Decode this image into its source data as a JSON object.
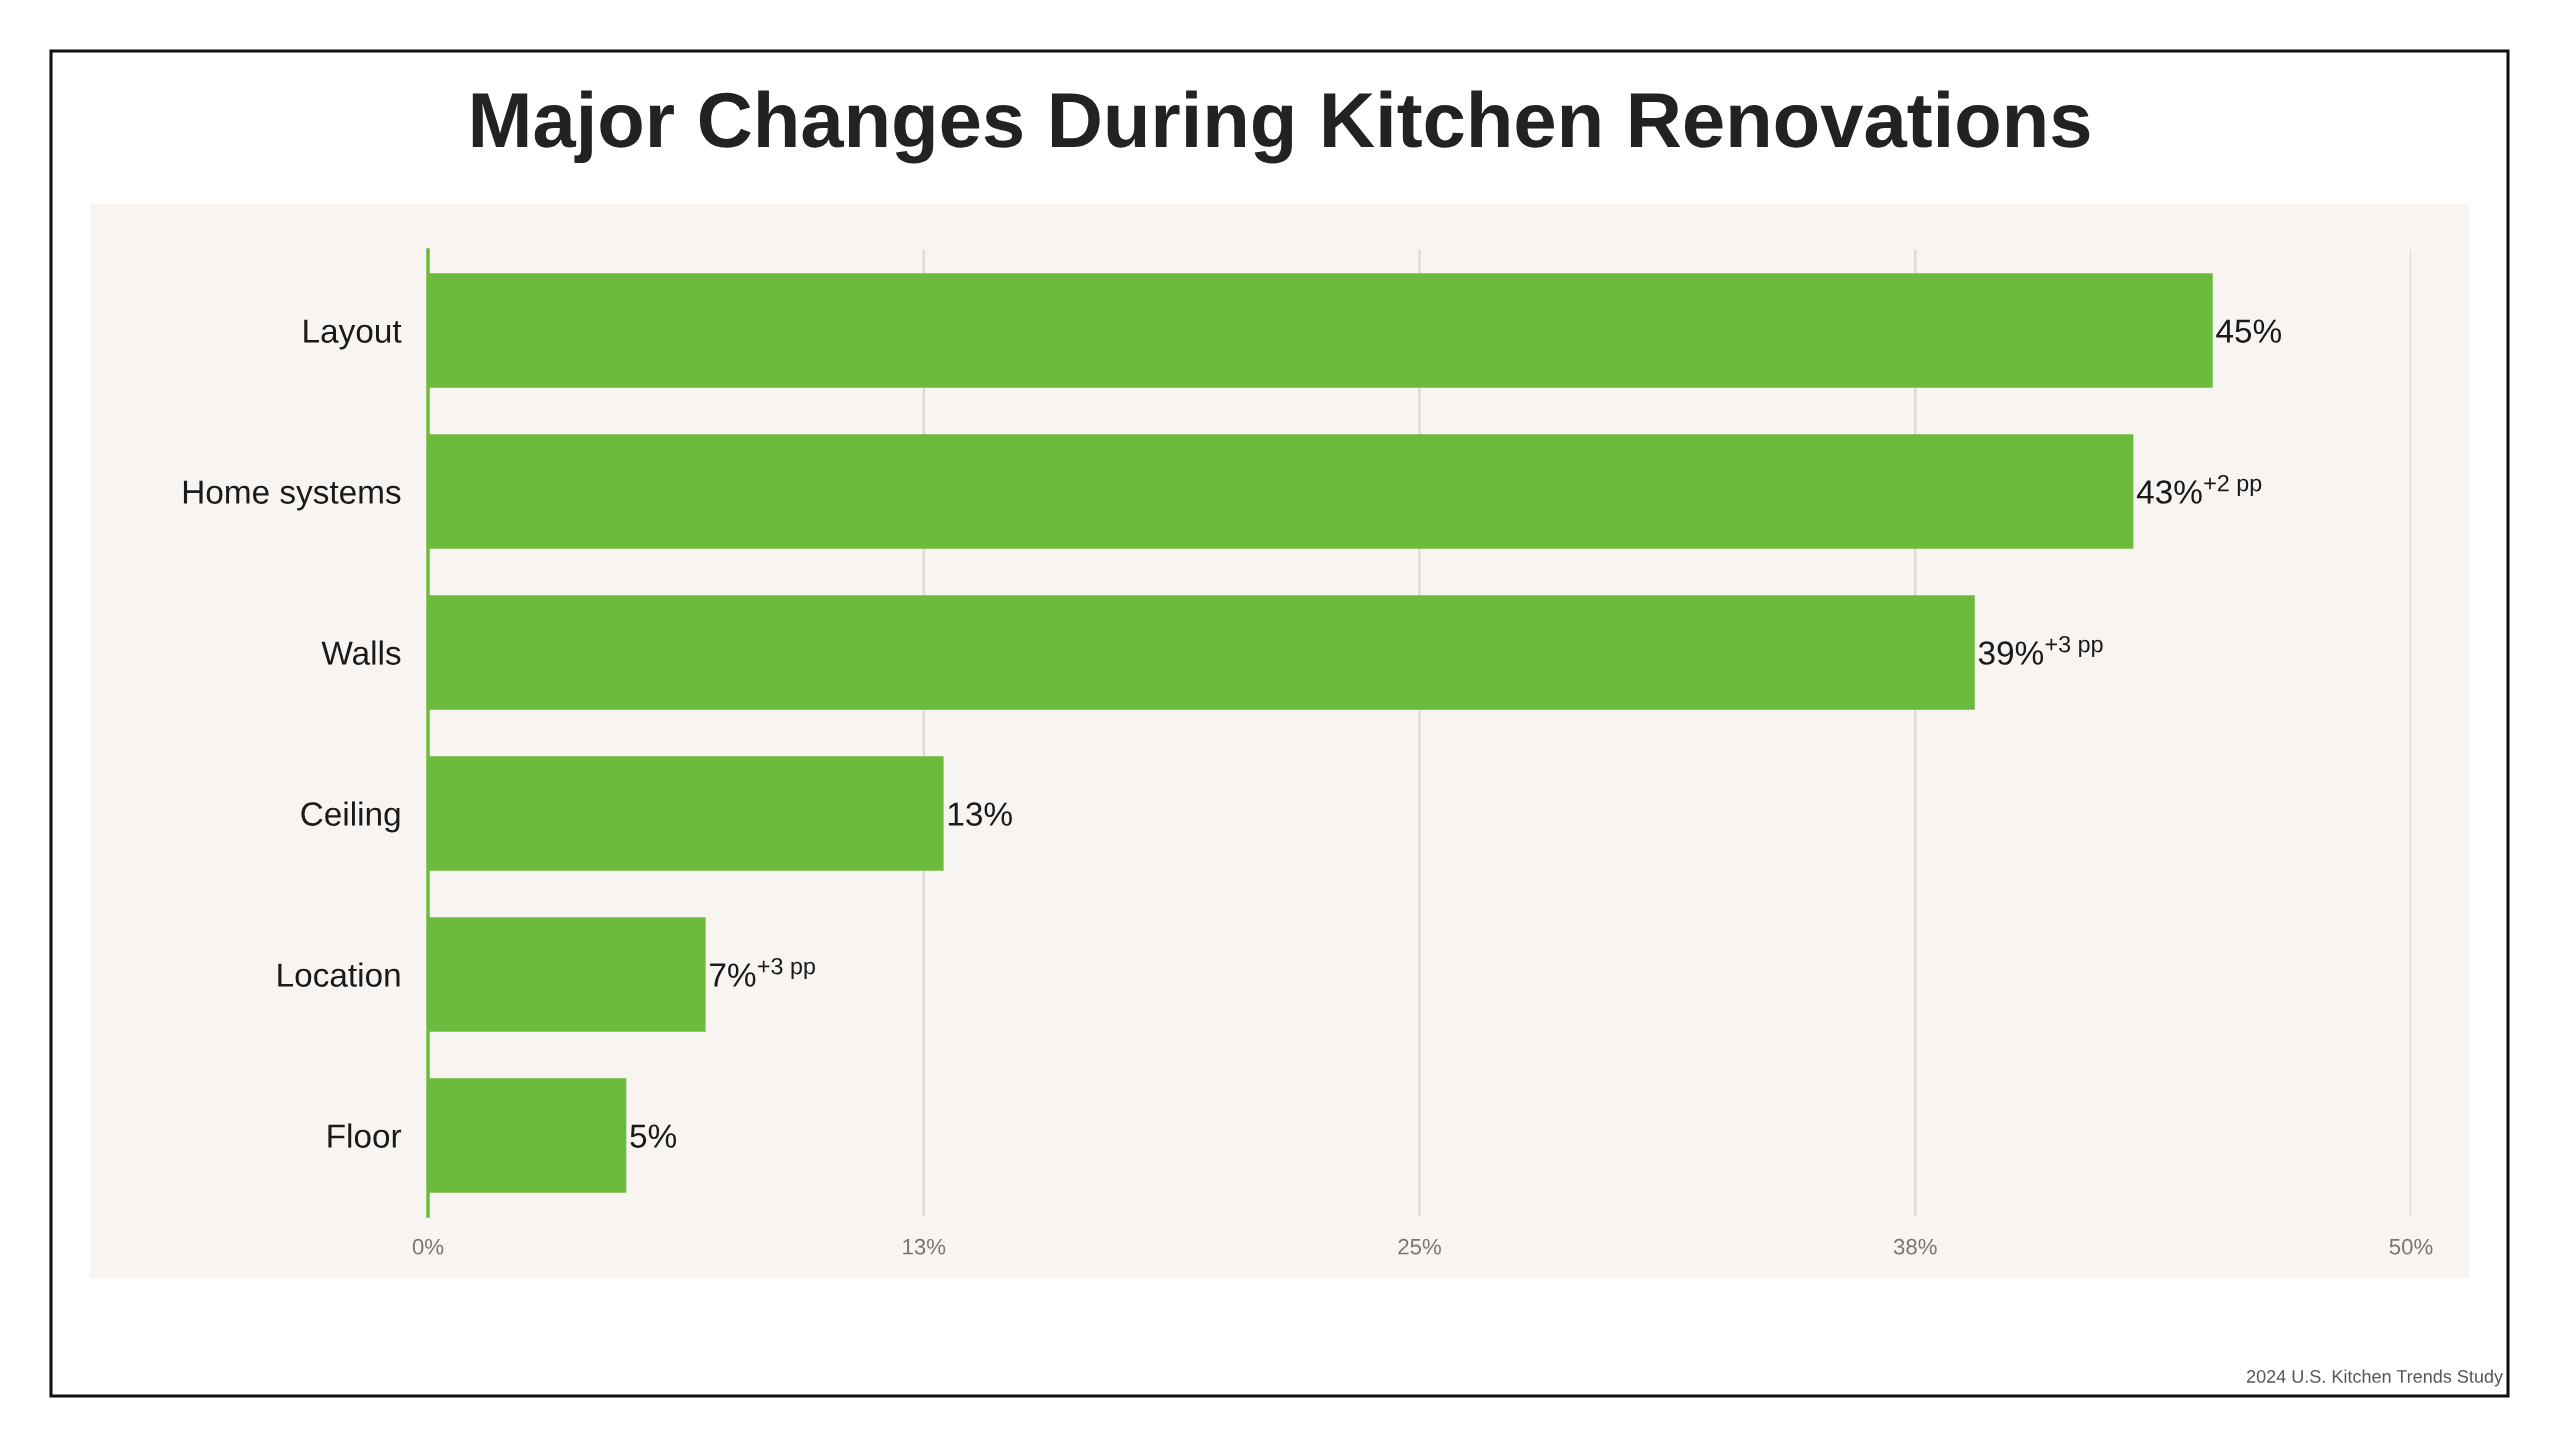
{
  "chart_data": {
    "type": "bar",
    "orientation": "horizontal",
    "title": "Major Changes During Kitchen Renovations",
    "categories": [
      "Layout",
      "Home systems",
      "Walls",
      "Ceiling",
      "Location",
      "Floor"
    ],
    "values": [
      45,
      43,
      39,
      13,
      7,
      5
    ],
    "color": "#6cbb3c",
    "value_labels": [
      "45%",
      "43%$^{+2 pp}$",
      "39%$^{+3 pp}$",
      "13%",
      "7%$^{+3 pp}$",
      "5%"
    ],
    "xlim": [
      0,
      50
    ],
    "xticks": [
      {
        "value": 0,
        "label": "0%"
      },
      {
        "value": 12.5,
        "label": "13%"
      },
      {
        "value": 25,
        "label": "25%"
      },
      {
        "value": 37.5,
        "label": "38%"
      },
      {
        "value": 50,
        "label": "50%"
      }
    ],
    "grid": "x",
    "annotations": [
      "2024 U.S. Kitchen Trends Study"
    ]
  }
}
